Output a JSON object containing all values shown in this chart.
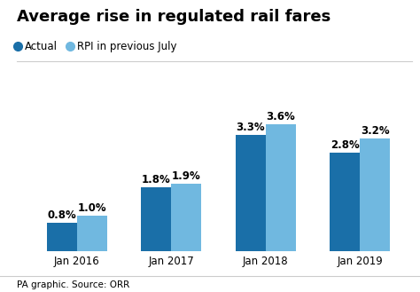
{
  "title": "Average rise in regulated rail fares",
  "categories": [
    "Jan 2016",
    "Jan 2017",
    "Jan 2018",
    "Jan 2019"
  ],
  "actual": [
    0.8,
    1.8,
    3.3,
    2.8
  ],
  "rpi": [
    1.0,
    1.9,
    3.6,
    3.2
  ],
  "actual_labels": [
    "0.8%",
    "1.8%",
    "3.3%",
    "2.8%"
  ],
  "rpi_labels": [
    "1.0%",
    "1.9%",
    "3.6%",
    "3.2%"
  ],
  "actual_color": "#1a6fa8",
  "rpi_color": "#70b8e0",
  "legend_actual": "Actual",
  "legend_rpi": "RPI in previous July",
  "source": "PA graphic. Source: ORR",
  "ylim": [
    0,
    4.3
  ],
  "bar_width": 0.32,
  "title_fontsize": 13,
  "label_fontsize": 8.5,
  "tick_fontsize": 8.5,
  "legend_fontsize": 8.5,
  "background_color": "#ffffff"
}
